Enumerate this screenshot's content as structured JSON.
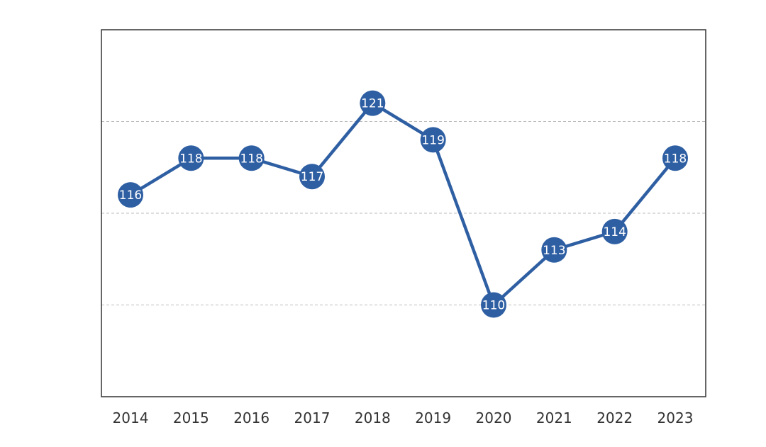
{
  "chart_data": {
    "type": "line",
    "title": "",
    "xlabel": "",
    "ylabel": "",
    "categories": [
      "2014",
      "2015",
      "2016",
      "2017",
      "2018",
      "2019",
      "2020",
      "2021",
      "2022",
      "2023"
    ],
    "series": [
      {
        "values": [
          116,
          118,
          118,
          117,
          121,
          119,
          110,
          113,
          114,
          118
        ]
      }
    ],
    "data_labels": [
      "116",
      "118",
      "118",
      "117",
      "121",
      "119",
      "110",
      "113",
      "114",
      "118"
    ],
    "ylim": [
      105,
      125
    ],
    "y_gridlines": [
      110,
      115,
      120
    ],
    "grid": "horizontal dashed",
    "legend": "none",
    "line_color": "#2f5fa3",
    "marker_color": "#2f5fa3",
    "label_color": "#ffffff",
    "frame_color": "#333333",
    "grid_color": "#bbbbbb"
  }
}
